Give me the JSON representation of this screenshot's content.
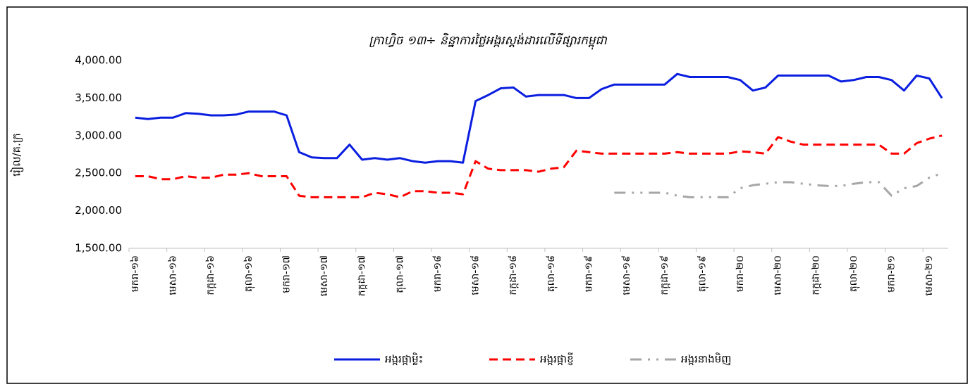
{
  "chart_data": {
    "type": "line",
    "title": "ក្រាហ្វិច ១៣÷ និន្នាការថ្លៃអង្ករស្តង់ដារលើទីផ្សារកម្ពុជា",
    "y_label": "រៀល/គ.ក្រ",
    "categories": [
      "មករា-១៦",
      null,
      null,
      "មេសា-១៦",
      null,
      null,
      "កក្កដា-១៦",
      null,
      null,
      "តុលា-១៦",
      null,
      null,
      "មករា-១៧",
      null,
      null,
      "មេសា-១៧",
      null,
      null,
      "កក្កដា-១៧",
      null,
      null,
      "តុលា-១៧",
      null,
      null,
      "មករា-១៨",
      null,
      null,
      "មេសា-១៨",
      null,
      null,
      "កក្កដា-១៨",
      null,
      null,
      "តុលា-១៨",
      null,
      null,
      "មករា-១៩",
      null,
      null,
      "មេសា-១៩",
      null,
      null,
      "កក្កដា-១៩",
      null,
      null,
      "តុលា-១៩",
      null,
      null,
      "មករា-២០",
      null,
      null,
      "មេសា-២០",
      null,
      null,
      "កក្កដា-២០",
      null,
      null,
      "តុលា-២០",
      null,
      null,
      "មករា-២១",
      null,
      null,
      "មេសា-២១",
      null
    ],
    "series": [
      {
        "name": "អង្ករផ្កាម្លិះ",
        "color": "#0a1ee0",
        "line_style": "solid",
        "values": [
          3240,
          3220,
          3240,
          3240,
          3300,
          3290,
          3270,
          3270,
          3280,
          3320,
          3320,
          3320,
          3270,
          2780,
          2710,
          2700,
          2700,
          2880,
          2680,
          2700,
          2680,
          2700,
          2660,
          2640,
          2660,
          2660,
          2640,
          3460,
          3540,
          3630,
          3640,
          3520,
          3540,
          3540,
          3540,
          3500,
          3500,
          3620,
          3680,
          3680,
          3680,
          3680,
          3680,
          3820,
          3780,
          3780,
          3780,
          3780,
          3740,
          3600,
          3640,
          3800,
          3800,
          3800,
          3800,
          3800,
          3720,
          3740,
          3780,
          3780,
          3740,
          3600,
          3800,
          3760,
          3500
        ]
      },
      {
        "name": "អង្ករផ្កាខ្ញី",
        "color": "#ff0000",
        "line_style": "dash",
        "values": [
          2460,
          2460,
          2420,
          2420,
          2460,
          2440,
          2440,
          2480,
          2480,
          2500,
          2460,
          2460,
          2460,
          2200,
          2180,
          2180,
          2180,
          2180,
          2180,
          2240,
          2220,
          2180,
          2260,
          2260,
          2240,
          2240,
          2220,
          2660,
          2560,
          2540,
          2540,
          2540,
          2520,
          2560,
          2580,
          2800,
          2780,
          2760,
          2760,
          2760,
          2760,
          2760,
          2760,
          2780,
          2760,
          2760,
          2760,
          2760,
          2790,
          2780,
          2760,
          2980,
          2920,
          2880,
          2880,
          2880,
          2880,
          2880,
          2880,
          2880,
          2760,
          2760,
          2900,
          2960,
          3000
        ]
      },
      {
        "name": "អង្ករនាងមិញ",
        "color": "#a6a6a6",
        "line_style": "dash-dot",
        "values": [
          null,
          null,
          null,
          null,
          null,
          null,
          null,
          null,
          null,
          null,
          null,
          null,
          null,
          null,
          null,
          null,
          null,
          null,
          null,
          null,
          null,
          null,
          null,
          null,
          null,
          null,
          null,
          null,
          null,
          null,
          null,
          null,
          null,
          null,
          null,
          null,
          null,
          null,
          2240,
          2240,
          2240,
          2240,
          2240,
          2200,
          2180,
          2180,
          2180,
          2180,
          2300,
          2340,
          2360,
          2380,
          2380,
          2360,
          2340,
          2330,
          2330,
          2360,
          2380,
          2380,
          2200,
          2300,
          2330,
          2440,
          2500
        ]
      }
    ],
    "ylim": [
      1500,
      4000
    ],
    "yticks": [
      {
        "value": 1500,
        "label": "1,500.00"
      },
      {
        "value": 2000,
        "label": "2,000.00"
      },
      {
        "value": 2500,
        "label": "2,500.00"
      },
      {
        "value": 3000,
        "label": "3,000.00"
      },
      {
        "value": 3500,
        "label": "3,500.00"
      },
      {
        "value": 4000,
        "label": "4,000.00"
      }
    ],
    "grid": false,
    "legend": "bottom"
  }
}
